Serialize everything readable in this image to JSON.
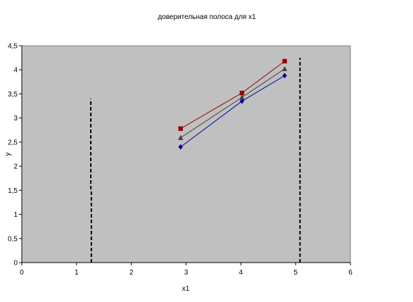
{
  "chart_data": {
    "type": "line",
    "title": "доверительная полоса для x1",
    "xlabel": "x1",
    "ylabel": "y",
    "xlim": [
      0,
      6
    ],
    "ylim": [
      0,
      4.5
    ],
    "x_ticks": [
      0,
      1,
      2,
      3,
      4,
      5,
      6
    ],
    "x_tick_labels": [
      "0",
      "1",
      "2",
      "3",
      "4",
      "5",
      "6"
    ],
    "y_ticks": [
      0,
      0.5,
      1,
      1.5,
      2,
      2.5,
      3,
      3.5,
      4,
      4.5
    ],
    "y_tick_labels": [
      "0",
      "0,5",
      "1",
      "1,5",
      "2",
      "2,5",
      "3",
      "3,5",
      "4",
      "4,5"
    ],
    "grid": false,
    "legend": "none",
    "plot_background": "#c0c0c0",
    "series": [
      {
        "color": "#990000",
        "marker": "square",
        "x": [
          2.9,
          4.02,
          4.8
        ],
        "y": [
          2.78,
          3.52,
          4.18
        ]
      },
      {
        "color": "#404040",
        "marker": "triangle",
        "x": [
          2.9,
          4.02,
          4.8
        ],
        "y": [
          2.59,
          3.43,
          4.02
        ]
      },
      {
        "color": "#000099",
        "marker": "diamond",
        "x": [
          2.9,
          4.02,
          4.8
        ],
        "y": [
          2.4,
          3.35,
          3.88
        ]
      }
    ],
    "vertical_dashed_lines": [
      {
        "color": "#000000",
        "x": [
          1.27,
          1.27,
          1.26,
          1.26
        ],
        "y": [
          0,
          1.45,
          1.55,
          3.4
        ]
      },
      {
        "color": "#000000",
        "x": [
          5.08,
          5.08
        ],
        "y": [
          0,
          4.25
        ]
      }
    ]
  }
}
